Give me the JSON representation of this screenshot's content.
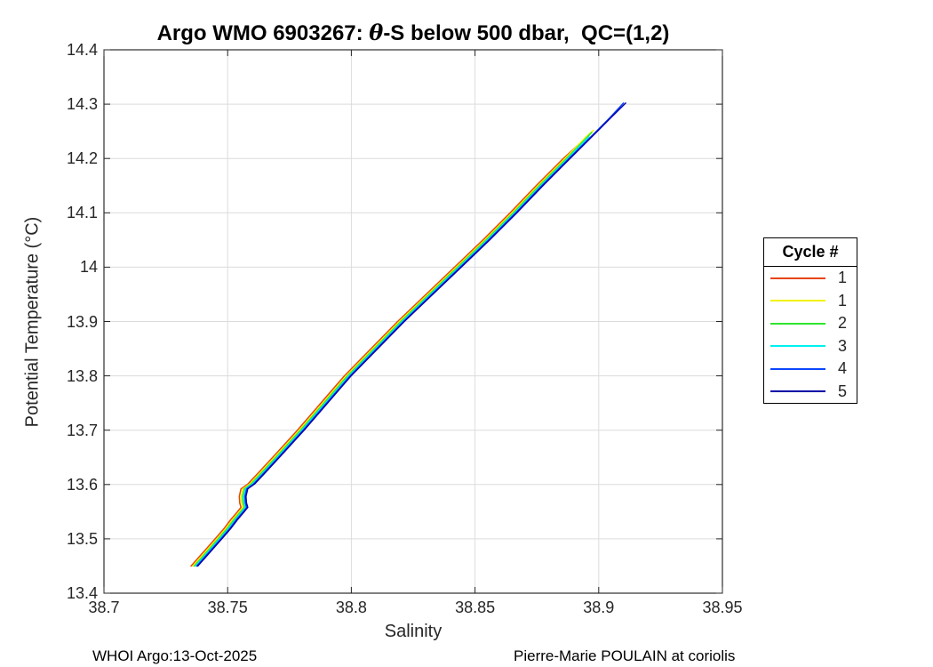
{
  "title": {
    "pre": "Argo WMO 6903267: ",
    "theta": "θ",
    "post": "-S below 500 dbar,  QC=(1,2)"
  },
  "axes": {
    "xlabel": "Salinity",
    "ylabel": "Potential Temperature (°C)",
    "xlim": [
      38.7,
      38.95
    ],
    "ylim": [
      13.4,
      14.4
    ],
    "xticks": [
      38.7,
      38.75,
      38.8,
      38.85,
      38.9,
      38.95
    ],
    "xtick_labels": [
      "38.7",
      "38.75",
      "38.8",
      "38.85",
      "38.9",
      "38.95"
    ],
    "yticks": [
      13.4,
      13.5,
      13.6,
      13.7,
      13.8,
      13.9,
      14.0,
      14.1,
      14.2,
      14.3,
      14.4
    ],
    "ytick_labels": [
      "13.4",
      "13.5",
      "13.6",
      "13.7",
      "13.8",
      "13.9",
      "14",
      "14.1",
      "14.2",
      "14.3",
      "14.4"
    ],
    "grid": true,
    "grid_color": "#dcdcdc",
    "axis_color": "#262626",
    "box_color": "#000000"
  },
  "legend": {
    "title": "Cycle #",
    "entries": [
      {
        "label": "1",
        "color": "#e8440c"
      },
      {
        "label": "1",
        "color": "#f2f200"
      },
      {
        "label": "2",
        "color": "#2ee52e"
      },
      {
        "label": "3",
        "color": "#00f0f0"
      },
      {
        "label": "4",
        "color": "#0a46ff"
      },
      {
        "label": "5",
        "color": "#0000a8"
      }
    ]
  },
  "footer": {
    "left": "WHOI Argo:13-Oct-2025",
    "right": "Pierre-Marie POULAIN at coriolis"
  },
  "chart_data": {
    "type": "line",
    "title": "Argo WMO 6903267: θ-S below 500 dbar, QC=(1,2)",
    "xlabel": "Salinity",
    "ylabel": "Potential Temperature (°C)",
    "xlim": [
      38.7,
      38.95
    ],
    "ylim": [
      13.4,
      14.4
    ],
    "grid": true,
    "legend_title": "Cycle #",
    "legend_position": "right-outside",
    "series": [
      {
        "name": "1",
        "color": "#e8440c",
        "points": [
          [
            38.7352,
            13.45
          ],
          [
            38.7387,
            13.468
          ],
          [
            38.7422,
            13.486
          ],
          [
            38.7457,
            13.504
          ],
          [
            38.7487,
            13.52
          ],
          [
            38.7512,
            13.535
          ],
          [
            38.7538,
            13.549
          ],
          [
            38.7554,
            13.558
          ],
          [
            38.7549,
            13.566
          ],
          [
            38.7547,
            13.578
          ],
          [
            38.7554,
            13.592
          ],
          [
            38.7582,
            13.601
          ],
          [
            38.7617,
            13.618
          ],
          [
            38.7682,
            13.65
          ],
          [
            38.7782,
            13.7
          ],
          [
            38.7972,
            13.8
          ],
          [
            38.8187,
            13.9
          ],
          [
            38.8417,
            14.0
          ],
          [
            38.8532,
            14.05
          ],
          [
            38.8642,
            14.1
          ],
          [
            38.8747,
            14.15
          ],
          [
            38.8857,
            14.2
          ],
          [
            38.892,
            14.226
          ]
        ]
      },
      {
        "name": "1",
        "color": "#f2f200",
        "points": [
          [
            38.7359,
            13.45
          ],
          [
            38.7394,
            13.468
          ],
          [
            38.7429,
            13.486
          ],
          [
            38.7464,
            13.504
          ],
          [
            38.7494,
            13.52
          ],
          [
            38.7519,
            13.535
          ],
          [
            38.7545,
            13.549
          ],
          [
            38.7561,
            13.558
          ],
          [
            38.7556,
            13.566
          ],
          [
            38.7554,
            13.578
          ],
          [
            38.7561,
            13.592
          ],
          [
            38.7589,
            13.601
          ],
          [
            38.7624,
            13.618
          ],
          [
            38.7689,
            13.65
          ],
          [
            38.7789,
            13.7
          ],
          [
            38.7979,
            13.8
          ],
          [
            38.8194,
            13.9
          ],
          [
            38.8424,
            14.0
          ],
          [
            38.8539,
            14.05
          ],
          [
            38.8649,
            14.1
          ],
          [
            38.8754,
            14.15
          ],
          [
            38.8864,
            14.2
          ],
          [
            38.8949,
            14.24
          ],
          [
            38.8979,
            14.252
          ]
        ]
      },
      {
        "name": "2",
        "color": "#2ee52e",
        "points": [
          [
            38.7365,
            13.45
          ],
          [
            38.74,
            13.468
          ],
          [
            38.7435,
            13.486
          ],
          [
            38.747,
            13.504
          ],
          [
            38.75,
            13.52
          ],
          [
            38.7525,
            13.535
          ],
          [
            38.7551,
            13.549
          ],
          [
            38.7567,
            13.558
          ],
          [
            38.7562,
            13.566
          ],
          [
            38.756,
            13.578
          ],
          [
            38.7567,
            13.592
          ],
          [
            38.7595,
            13.601
          ],
          [
            38.763,
            13.618
          ],
          [
            38.7695,
            13.65
          ],
          [
            38.7795,
            13.7
          ],
          [
            38.7985,
            13.8
          ],
          [
            38.82,
            13.9
          ],
          [
            38.843,
            14.0
          ],
          [
            38.8545,
            14.05
          ],
          [
            38.8655,
            14.1
          ],
          [
            38.876,
            14.15
          ],
          [
            38.887,
            14.2
          ],
          [
            38.8955,
            14.24
          ],
          [
            38.8972,
            14.248
          ]
        ]
      },
      {
        "name": "3",
        "color": "#00f0f0",
        "points": [
          [
            38.737,
            13.45
          ],
          [
            38.7405,
            13.468
          ],
          [
            38.744,
            13.486
          ],
          [
            38.7475,
            13.504
          ],
          [
            38.7505,
            13.52
          ],
          [
            38.753,
            13.535
          ],
          [
            38.7556,
            13.549
          ],
          [
            38.7572,
            13.558
          ],
          [
            38.7567,
            13.566
          ],
          [
            38.7565,
            13.578
          ],
          [
            38.7572,
            13.592
          ],
          [
            38.76,
            13.601
          ],
          [
            38.7635,
            13.618
          ],
          [
            38.77,
            13.65
          ],
          [
            38.78,
            13.7
          ],
          [
            38.799,
            13.8
          ],
          [
            38.8205,
            13.9
          ],
          [
            38.8435,
            14.0
          ],
          [
            38.855,
            14.05
          ],
          [
            38.866,
            14.1
          ],
          [
            38.8765,
            14.15
          ],
          [
            38.8875,
            14.2
          ],
          [
            38.896,
            14.24
          ]
        ]
      },
      {
        "name": "4",
        "color": "#0a46ff",
        "points": [
          [
            38.7375,
            13.45
          ],
          [
            38.741,
            13.468
          ],
          [
            38.7445,
            13.486
          ],
          [
            38.748,
            13.504
          ],
          [
            38.751,
            13.52
          ],
          [
            38.7535,
            13.535
          ],
          [
            38.7561,
            13.549
          ],
          [
            38.7577,
            13.558
          ],
          [
            38.7572,
            13.566
          ],
          [
            38.757,
            13.578
          ],
          [
            38.7577,
            13.592
          ],
          [
            38.7605,
            13.601
          ],
          [
            38.764,
            13.618
          ],
          [
            38.7705,
            13.65
          ],
          [
            38.7805,
            13.7
          ],
          [
            38.7995,
            13.8
          ],
          [
            38.821,
            13.9
          ],
          [
            38.844,
            14.0
          ],
          [
            38.8555,
            14.05
          ],
          [
            38.8665,
            14.1
          ],
          [
            38.877,
            14.15
          ],
          [
            38.888,
            14.2
          ],
          [
            38.8995,
            14.252
          ],
          [
            38.9045,
            14.275
          ],
          [
            38.91,
            14.302
          ]
        ]
      },
      {
        "name": "5",
        "color": "#0000a8",
        "points": [
          [
            38.7379,
            13.45
          ],
          [
            38.7414,
            13.468
          ],
          [
            38.7449,
            13.486
          ],
          [
            38.7484,
            13.504
          ],
          [
            38.7514,
            13.52
          ],
          [
            38.7539,
            13.535
          ],
          [
            38.7565,
            13.549
          ],
          [
            38.7581,
            13.558
          ],
          [
            38.7576,
            13.566
          ],
          [
            38.7574,
            13.578
          ],
          [
            38.7581,
            13.592
          ],
          [
            38.7609,
            13.601
          ],
          [
            38.7644,
            13.618
          ],
          [
            38.7709,
            13.65
          ],
          [
            38.7809,
            13.7
          ],
          [
            38.7999,
            13.8
          ],
          [
            38.8214,
            13.9
          ],
          [
            38.8444,
            14.0
          ],
          [
            38.8559,
            14.05
          ],
          [
            38.8669,
            14.1
          ],
          [
            38.8774,
            14.15
          ],
          [
            38.8884,
            14.2
          ],
          [
            38.8999,
            14.252
          ],
          [
            38.9049,
            14.275
          ],
          [
            38.9109,
            14.302
          ]
        ]
      }
    ]
  }
}
